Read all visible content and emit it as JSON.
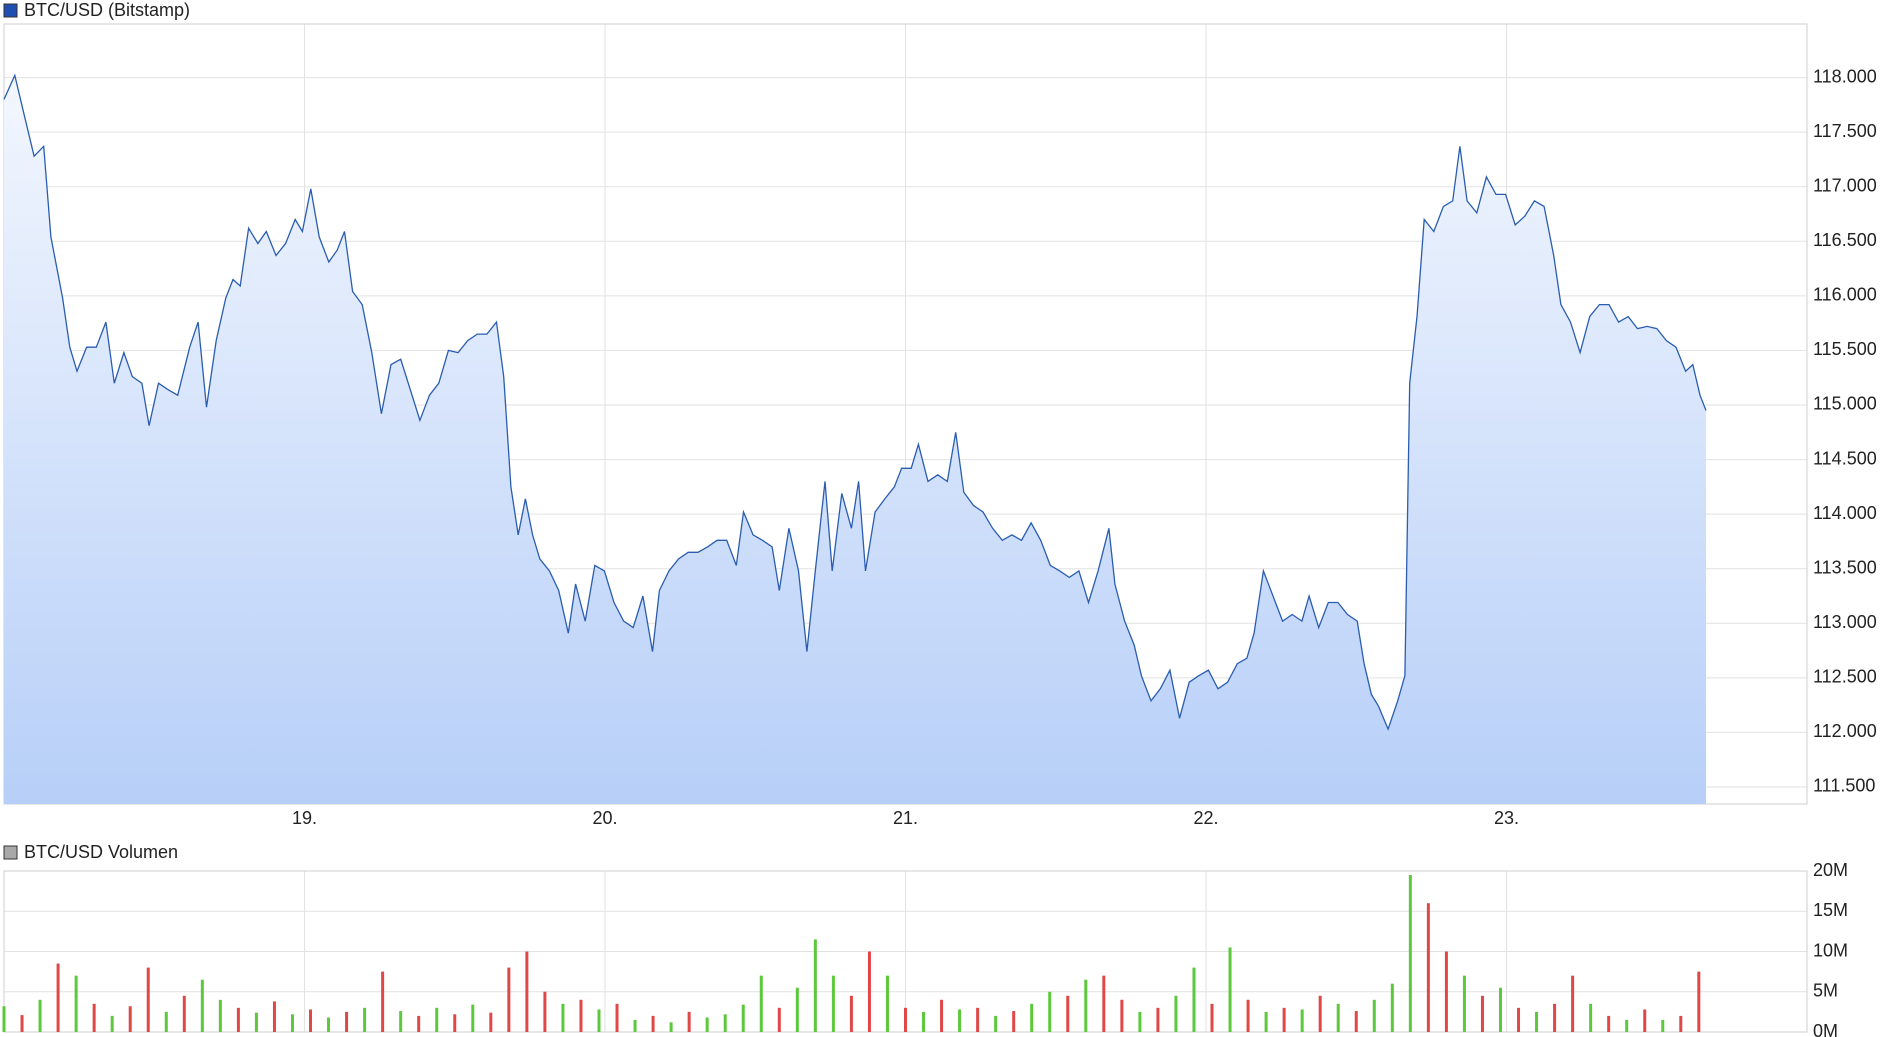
{
  "chart_data": [
    {
      "type": "area",
      "xlim": [
        18,
        24
      ],
      "xticks": [
        {
          "value": 19,
          "label": "19."
        },
        {
          "value": 20,
          "label": "20."
        },
        {
          "value": 21,
          "label": "21."
        },
        {
          "value": 22,
          "label": "22."
        },
        {
          "value": 23,
          "label": "23."
        }
      ],
      "ylim": [
        111344,
        118491
      ],
      "yticks": [
        {
          "value": 111500,
          "label": "111.500"
        },
        {
          "value": 112000,
          "label": "112.000"
        },
        {
          "value": 112500,
          "label": "112.500"
        },
        {
          "value": 113000,
          "label": "113.000"
        },
        {
          "value": 113500,
          "label": "113.500"
        },
        {
          "value": 114000,
          "label": "114.000"
        },
        {
          "value": 114500,
          "label": "114.500"
        },
        {
          "value": 115000,
          "label": "115.000"
        },
        {
          "value": 115500,
          "label": "115.500"
        },
        {
          "value": 116000,
          "label": "116.000"
        },
        {
          "value": 116500,
          "label": "116.500"
        },
        {
          "value": 117000,
          "label": "117.000"
        },
        {
          "value": 117500,
          "label": "117.500"
        },
        {
          "value": 118000,
          "label": "118.000"
        }
      ],
      "grid": true,
      "x": [
        18.0,
        18.036,
        18.068,
        18.1,
        18.132,
        18.156,
        18.195,
        18.219,
        18.243,
        18.275,
        18.307,
        18.339,
        18.367,
        18.399,
        18.427,
        18.459,
        18.483,
        18.514,
        18.546,
        18.578,
        18.618,
        18.646,
        18.674,
        18.706,
        18.738,
        18.762,
        18.786,
        18.814,
        18.845,
        18.873,
        18.905,
        18.937,
        18.969,
        18.993,
        19.021,
        19.049,
        19.081,
        19.109,
        19.133,
        19.16,
        19.192,
        19.224,
        19.256,
        19.288,
        19.32,
        19.352,
        19.384,
        19.416,
        19.447,
        19.479,
        19.511,
        19.543,
        19.575,
        19.607,
        19.639,
        19.663,
        19.687,
        19.711,
        19.735,
        19.759,
        19.783,
        19.815,
        19.846,
        19.878,
        19.902,
        19.934,
        19.966,
        19.998,
        20.03,
        20.062,
        20.094,
        20.126,
        20.158,
        20.181,
        20.213,
        20.245,
        20.277,
        20.309,
        20.341,
        20.373,
        20.405,
        20.437,
        20.461,
        20.493,
        20.524,
        20.556,
        20.58,
        20.612,
        20.644,
        20.672,
        20.7,
        20.732,
        20.756,
        20.788,
        20.82,
        20.844,
        20.867,
        20.899,
        20.931,
        20.963,
        20.987,
        21.019,
        21.043,
        21.075,
        21.107,
        21.139,
        21.167,
        21.194,
        21.226,
        21.258,
        21.29,
        21.322,
        21.354,
        21.386,
        21.418,
        21.45,
        21.482,
        21.513,
        21.545,
        21.577,
        21.609,
        21.641,
        21.677,
        21.697,
        21.729,
        21.761,
        21.785,
        21.817,
        21.848,
        21.88,
        21.912,
        21.944,
        21.976,
        22.008,
        22.04,
        22.072,
        22.104,
        22.136,
        22.16,
        22.191,
        22.223,
        22.255,
        22.287,
        22.319,
        22.343,
        22.375,
        22.407,
        22.439,
        22.471,
        22.503,
        22.526,
        22.55,
        22.574,
        22.606,
        22.638,
        22.662,
        22.678,
        22.702,
        22.726,
        22.758,
        22.79,
        22.821,
        22.845,
        22.869,
        22.901,
        22.933,
        22.965,
        22.997,
        23.029,
        23.061,
        23.093,
        23.125,
        23.157,
        23.181,
        23.213,
        23.245,
        23.277,
        23.309,
        23.341,
        23.373,
        23.405,
        23.436,
        23.468,
        23.5,
        23.532,
        23.564,
        23.596,
        23.62,
        23.644,
        23.664
      ],
      "series": [
        {
          "name": "BTC/USD (Bitstamp)",
          "color": "#2a5db0",
          "legend_color": "#1f4fb0",
          "values": [
            117800,
            118020,
            117650,
            117280,
            117370,
            116540,
            115980,
            115530,
            115310,
            115530,
            115530,
            115760,
            115200,
            115480,
            115260,
            115200,
            114810,
            115200,
            115140,
            115090,
            115530,
            115760,
            114980,
            115590,
            115980,
            116150,
            116090,
            116620,
            116480,
            116590,
            116370,
            116480,
            116700,
            116590,
            116980,
            116540,
            116310,
            116420,
            116590,
            116040,
            115920,
            115480,
            114920,
            115370,
            115420,
            115140,
            114860,
            115090,
            115200,
            115500,
            115480,
            115590,
            115650,
            115650,
            115760,
            115260,
            114250,
            113810,
            114140,
            113810,
            113590,
            113480,
            113300,
            112910,
            113360,
            113020,
            113530,
            113480,
            113190,
            113020,
            112960,
            113250,
            112740,
            113300,
            113480,
            113590,
            113650,
            113650,
            113700,
            113760,
            113760,
            113530,
            114020,
            113810,
            113760,
            113700,
            113300,
            113870,
            113480,
            112740,
            113480,
            114300,
            113480,
            114190,
            113870,
            114300,
            113480,
            114020,
            114140,
            114250,
            114420,
            114420,
            114640,
            114300,
            114360,
            114300,
            114750,
            114200,
            114080,
            114020,
            113870,
            113760,
            113810,
            113760,
            113920,
            113760,
            113530,
            113480,
            113420,
            113480,
            113190,
            113480,
            113870,
            113360,
            113020,
            112800,
            112520,
            112290,
            112400,
            112570,
            112130,
            112460,
            112520,
            112570,
            112400,
            112460,
            112630,
            112680,
            112910,
            113480,
            113250,
            113020,
            113080,
            113020,
            113250,
            112960,
            113190,
            113190,
            113080,
            113020,
            112630,
            112350,
            112240,
            112030,
            112290,
            112520,
            115200,
            115810,
            116700,
            116590,
            116820,
            116870,
            117370,
            116870,
            116760,
            117090,
            116930,
            116930,
            116650,
            116730,
            116870,
            116820,
            116370,
            115920,
            115760,
            115480,
            115810,
            115920,
            115920,
            115760,
            115810,
            115700,
            115720,
            115700,
            115590,
            115530,
            115310,
            115370,
            115090,
            114950
          ]
        }
      ]
    },
    {
      "type": "bar",
      "xlim": [
        18,
        24
      ],
      "xticks": [
        19,
        20,
        21,
        22,
        23
      ],
      "ylim": [
        0,
        20000000
      ],
      "yticks": [
        {
          "value": 0,
          "label": "0M"
        },
        {
          "value": 5000000,
          "label": "5M"
        },
        {
          "value": 10000000,
          "label": "10M"
        },
        {
          "value": 15000000,
          "label": "15M"
        },
        {
          "value": 20000000,
          "label": "20M"
        }
      ],
      "grid": true,
      "x": [
        18,
        18.06,
        18.12,
        18.18,
        18.24,
        18.3,
        18.36,
        18.42,
        18.48,
        18.54,
        18.6,
        18.66,
        18.72,
        18.78,
        18.84,
        18.9,
        18.96,
        19.02,
        19.08,
        19.14,
        19.2,
        19.26,
        19.32,
        19.38,
        19.44,
        19.5,
        19.56,
        19.62,
        19.68,
        19.74,
        19.8,
        19.86,
        19.92,
        19.98,
        20.04,
        20.1,
        20.16,
        20.22,
        20.28,
        20.34,
        20.4,
        20.46,
        20.52,
        20.58,
        20.64,
        20.7,
        20.76,
        20.82,
        20.88,
        20.94,
        21,
        21.06,
        21.12,
        21.18,
        21.24,
        21.3,
        21.36,
        21.42,
        21.48,
        21.54,
        21.6,
        21.66,
        21.72,
        21.78,
        21.84,
        21.9,
        21.96,
        22.02,
        22.08,
        22.14,
        22.2,
        22.26,
        22.32,
        22.38,
        22.44,
        22.5,
        22.56,
        22.62,
        22.68,
        22.74,
        22.8,
        22.86,
        22.92,
        22.98,
        23.04,
        23.1,
        23.16,
        23.22,
        23.28,
        23.34,
        23.4,
        23.46,
        23.52,
        23.58,
        23.64
      ],
      "series": [
        {
          "name": "BTC/USD Volumen",
          "legend_color": "#a8a8a8",
          "values": [
            3200000,
            2100000,
            4000000,
            8500000,
            7000000,
            3500000,
            2000000,
            3200000,
            8000000,
            2500000,
            4500000,
            6500000,
            4000000,
            3000000,
            2400000,
            3800000,
            2200000,
            2800000,
            1800000,
            2500000,
            3000000,
            7500000,
            2600000,
            2000000,
            3000000,
            2200000,
            3400000,
            2400000,
            8000000,
            10000000,
            5000000,
            3500000,
            4000000,
            2800000,
            3500000,
            1500000,
            2000000,
            1200000,
            2500000,
            1800000,
            2200000,
            3400000,
            7000000,
            3000000,
            5500000,
            11500000,
            7000000,
            4500000,
            10000000,
            7000000,
            3000000,
            2500000,
            4000000,
            2800000,
            3000000,
            2000000,
            2600000,
            3500000,
            5000000,
            4500000,
            6500000,
            7000000,
            4000000,
            2500000,
            3000000,
            4500000,
            8000000,
            3500000,
            10500000,
            4000000,
            2500000,
            3000000,
            2800000,
            4500000,
            3500000,
            2600000,
            4000000,
            6000000,
            19500000,
            16000000,
            10000000,
            7000000,
            4500000,
            5500000,
            3000000,
            2500000,
            3500000,
            7000000,
            3500000,
            2000000,
            1500000,
            2800000,
            1500000,
            2000000,
            7500000
          ],
          "colors": [
            "#5cc83c",
            "#e04848",
            "#5cc83c",
            "#e04848",
            "#5cc83c",
            "#e04848",
            "#5cc83c",
            "#e04848",
            "#e04848",
            "#5cc83c",
            "#e04848",
            "#5cc83c",
            "#5cc83c",
            "#e04848",
            "#5cc83c",
            "#e04848",
            "#5cc83c",
            "#e04848",
            "#5cc83c",
            "#e04848",
            "#5cc83c",
            "#e04848",
            "#5cc83c",
            "#e04848",
            "#5cc83c",
            "#e04848",
            "#5cc83c",
            "#e04848",
            "#e04848",
            "#e04848",
            "#e04848",
            "#5cc83c",
            "#e04848",
            "#5cc83c",
            "#e04848",
            "#5cc83c",
            "#e04848",
            "#5cc83c",
            "#e04848",
            "#5cc83c",
            "#5cc83c",
            "#5cc83c",
            "#5cc83c",
            "#e04848",
            "#5cc83c",
            "#5cc83c",
            "#5cc83c",
            "#e04848",
            "#e04848",
            "#5cc83c",
            "#e04848",
            "#5cc83c",
            "#e04848",
            "#5cc83c",
            "#e04848",
            "#5cc83c",
            "#e04848",
            "#5cc83c",
            "#5cc83c",
            "#e04848",
            "#5cc83c",
            "#e04848",
            "#e04848",
            "#5cc83c",
            "#e04848",
            "#5cc83c",
            "#5cc83c",
            "#e04848",
            "#5cc83c",
            "#e04848",
            "#5cc83c",
            "#e04848",
            "#5cc83c",
            "#e04848",
            "#5cc83c",
            "#e04848",
            "#5cc83c",
            "#5cc83c",
            "#5cc83c",
            "#e04848",
            "#e04848",
            "#5cc83c",
            "#e04848",
            "#5cc83c",
            "#e04848",
            "#5cc83c",
            "#e04848",
            "#e04848",
            "#5cc83c",
            "#e04848",
            "#5cc83c",
            "#e04848",
            "#5cc83c",
            "#e04848",
            "#e04848"
          ]
        }
      ]
    }
  ]
}
